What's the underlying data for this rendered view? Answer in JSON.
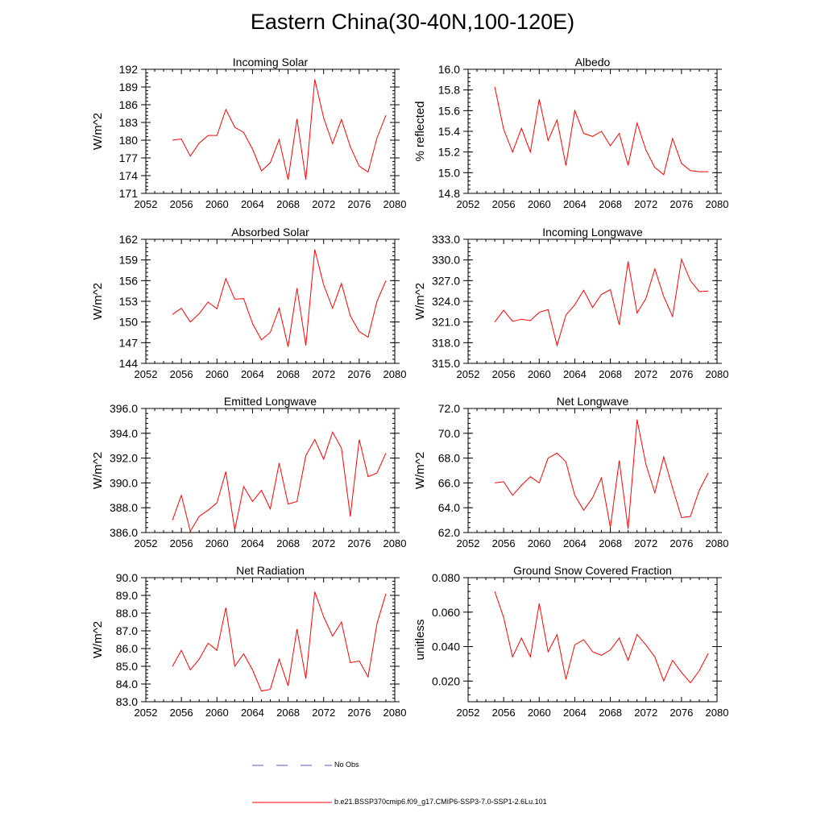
{
  "title": "Eastern China(30-40N,100-120E)",
  "colors": {
    "model": "#ff0000",
    "obs": "#5a5ac8",
    "axis": "#000000"
  },
  "legend": {
    "obs_label": "No Obs",
    "model_label": "b.e21.BSSP370cmip6.f09_g17.CMIP6-SSP3-7.0-SSP1-2.6Lu.101"
  },
  "chart_data": [
    {
      "type": "line",
      "title": "Incoming Solar",
      "ylabel": "W/m^2",
      "xlim": [
        2052,
        2080
      ],
      "ylim": [
        171,
        192
      ],
      "xticks": [
        2052,
        2056,
        2060,
        2064,
        2068,
        2072,
        2076,
        2080
      ],
      "yticks": [
        "171",
        "174",
        "177",
        "180",
        "183",
        "186",
        "189",
        "192"
      ],
      "x": [
        2055,
        2056,
        2057,
        2058,
        2059,
        2060,
        2061,
        2062,
        2063,
        2064,
        2065,
        2066,
        2067,
        2068,
        2069,
        2070,
        2071,
        2072,
        2073,
        2074,
        2075,
        2076,
        2077,
        2078,
        2079
      ],
      "series": [
        {
          "values": [
            180.0,
            180.2,
            177.3,
            179.5,
            180.8,
            180.8,
            185.2,
            182.2,
            181.3,
            178.5,
            174.8,
            176.2,
            180.1,
            173.3,
            183.6,
            173.3,
            190.3,
            183.8,
            179.4,
            183.5,
            178.9,
            175.6,
            174.6,
            180.4,
            184.2
          ]
        }
      ]
    },
    {
      "type": "line",
      "title": "Albedo",
      "ylabel": "% reflected",
      "xlim": [
        2052,
        2080
      ],
      "ylim": [
        14.8,
        16.0
      ],
      "xticks": [
        2052,
        2056,
        2060,
        2064,
        2068,
        2072,
        2076,
        2080
      ],
      "yticks": [
        "14.8",
        "15.0",
        "15.2",
        "15.4",
        "15.6",
        "15.8",
        "16.0"
      ],
      "x": [
        2055,
        2056,
        2057,
        2058,
        2059,
        2060,
        2061,
        2062,
        2063,
        2064,
        2065,
        2066,
        2067,
        2068,
        2069,
        2070,
        2071,
        2072,
        2073,
        2074,
        2075,
        2076,
        2077,
        2078,
        2079
      ],
      "series": [
        {
          "values": [
            15.83,
            15.42,
            15.2,
            15.43,
            15.2,
            15.71,
            15.31,
            15.51,
            15.07,
            15.6,
            15.38,
            15.35,
            15.4,
            15.26,
            15.38,
            15.07,
            15.48,
            15.22,
            15.05,
            14.98,
            15.33,
            15.09,
            15.02,
            15.01,
            15.01
          ]
        }
      ]
    },
    {
      "type": "line",
      "title": "Absorbed Solar",
      "ylabel": "W/m^2",
      "xlim": [
        2052,
        2080
      ],
      "ylim": [
        144,
        162
      ],
      "xticks": [
        2052,
        2056,
        2060,
        2064,
        2068,
        2072,
        2076,
        2080
      ],
      "yticks": [
        "144",
        "147",
        "150",
        "153",
        "156",
        "159",
        "162"
      ],
      "x": [
        2055,
        2056,
        2057,
        2058,
        2059,
        2060,
        2061,
        2062,
        2063,
        2064,
        2065,
        2066,
        2067,
        2068,
        2069,
        2070,
        2071,
        2072,
        2073,
        2074,
        2075,
        2076,
        2077,
        2078,
        2079
      ],
      "series": [
        {
          "values": [
            151.1,
            152.0,
            150.0,
            151.2,
            152.9,
            151.9,
            156.3,
            153.3,
            153.4,
            149.8,
            147.4,
            148.5,
            152.0,
            146.4,
            154.9,
            146.6,
            160.5,
            155.4,
            152.0,
            155.6,
            150.9,
            148.6,
            147.8,
            153.0,
            156.0
          ]
        }
      ]
    },
    {
      "type": "line",
      "title": "Incoming Longwave",
      "ylabel": "W/m^2",
      "xlim": [
        2052,
        2080
      ],
      "ylim": [
        315.0,
        333.0
      ],
      "xticks": [
        2052,
        2056,
        2060,
        2064,
        2068,
        2072,
        2076,
        2080
      ],
      "yticks": [
        "315.0",
        "318.0",
        "321.0",
        "324.0",
        "327.0",
        "330.0",
        "333.0"
      ],
      "x": [
        2055,
        2056,
        2057,
        2058,
        2059,
        2060,
        2061,
        2062,
        2063,
        2064,
        2065,
        2066,
        2067,
        2068,
        2069,
        2070,
        2071,
        2072,
        2073,
        2074,
        2075,
        2076,
        2077,
        2078,
        2079
      ],
      "series": [
        {
          "values": [
            321.0,
            322.7,
            321.1,
            321.4,
            321.2,
            322.4,
            322.8,
            317.6,
            322.0,
            323.5,
            325.6,
            323.1,
            325.0,
            325.7,
            320.6,
            329.8,
            322.3,
            324.4,
            328.7,
            324.7,
            321.8,
            330.1,
            327.0,
            325.4,
            325.5
          ]
        }
      ]
    },
    {
      "type": "line",
      "title": "Emitted Longwave",
      "ylabel": "W/m^2",
      "xlim": [
        2052,
        2080
      ],
      "ylim": [
        386.0,
        396.0
      ],
      "xticks": [
        2052,
        2056,
        2060,
        2064,
        2068,
        2072,
        2076,
        2080
      ],
      "yticks": [
        "386.0",
        "388.0",
        "390.0",
        "392.0",
        "394.0",
        "396.0"
      ],
      "x": [
        2055,
        2056,
        2057,
        2058,
        2059,
        2060,
        2061,
        2062,
        2063,
        2064,
        2065,
        2066,
        2067,
        2068,
        2069,
        2070,
        2071,
        2072,
        2073,
        2074,
        2075,
        2076,
        2077,
        2078,
        2079
      ],
      "series": [
        {
          "values": [
            387.0,
            389.0,
            386.1,
            387.3,
            387.8,
            388.4,
            390.9,
            386.2,
            389.7,
            388.5,
            389.4,
            387.9,
            391.6,
            388.3,
            388.5,
            392.2,
            393.5,
            391.9,
            394.1,
            392.8,
            387.3,
            393.5,
            390.5,
            390.8,
            392.4
          ]
        }
      ]
    },
    {
      "type": "line",
      "title": "Net Longwave",
      "ylabel": "W/m^2",
      "xlim": [
        2052,
        2080
      ],
      "ylim": [
        62.0,
        72.0
      ],
      "xticks": [
        2052,
        2056,
        2060,
        2064,
        2068,
        2072,
        2076,
        2080
      ],
      "yticks": [
        "62.0",
        "64.0",
        "66.0",
        "68.0",
        "70.0",
        "72.0"
      ],
      "x": [
        2055,
        2056,
        2057,
        2058,
        2059,
        2060,
        2061,
        2062,
        2063,
        2064,
        2065,
        2066,
        2067,
        2068,
        2069,
        2070,
        2071,
        2072,
        2073,
        2074,
        2075,
        2076,
        2077,
        2078,
        2079
      ],
      "series": [
        {
          "values": [
            66.0,
            66.1,
            65.0,
            65.8,
            66.5,
            66.0,
            68.0,
            68.4,
            67.7,
            65.0,
            63.8,
            64.8,
            66.4,
            62.4,
            67.8,
            62.3,
            71.1,
            67.5,
            65.2,
            68.1,
            65.6,
            63.2,
            63.3,
            65.4,
            66.8
          ]
        }
      ]
    },
    {
      "type": "line",
      "title": "Net Radiation",
      "ylabel": "W/m^2",
      "xlim": [
        2052,
        2080
      ],
      "ylim": [
        83.0,
        90.0
      ],
      "xticks": [
        2052,
        2056,
        2060,
        2064,
        2068,
        2072,
        2076,
        2080
      ],
      "yticks": [
        "83.0",
        "84.0",
        "85.0",
        "86.0",
        "87.0",
        "88.0",
        "89.0",
        "90.0"
      ],
      "x": [
        2055,
        2056,
        2057,
        2058,
        2059,
        2060,
        2061,
        2062,
        2063,
        2064,
        2065,
        2066,
        2067,
        2068,
        2069,
        2070,
        2071,
        2072,
        2073,
        2074,
        2075,
        2076,
        2077,
        2078,
        2079
      ],
      "series": [
        {
          "values": [
            85.0,
            85.9,
            84.8,
            85.4,
            86.3,
            85.9,
            88.3,
            85.0,
            85.7,
            84.8,
            83.6,
            83.7,
            85.4,
            83.9,
            87.1,
            84.3,
            89.2,
            87.8,
            86.7,
            87.5,
            85.2,
            85.3,
            84.4,
            87.4,
            89.1
          ]
        }
      ]
    },
    {
      "type": "line",
      "title": "Ground Snow Covered Fraction",
      "ylabel": "unitless",
      "xlim": [
        2052,
        2080
      ],
      "ylim": [
        0.008,
        0.08
      ],
      "xticks": [
        2052,
        2056,
        2060,
        2064,
        2068,
        2072,
        2076,
        2080
      ],
      "yticks": [
        "0.020",
        "0.040",
        "0.060",
        "0.080"
      ],
      "ytick_values": [
        0.02,
        0.04,
        0.06,
        0.08
      ],
      "x": [
        2055,
        2056,
        2057,
        2058,
        2059,
        2060,
        2061,
        2062,
        2063,
        2064,
        2065,
        2066,
        2067,
        2068,
        2069,
        2070,
        2071,
        2072,
        2073,
        2074,
        2075,
        2076,
        2077,
        2078,
        2079
      ],
      "series": [
        {
          "values": [
            0.072,
            0.057,
            0.034,
            0.045,
            0.034,
            0.065,
            0.037,
            0.047,
            0.021,
            0.041,
            0.044,
            0.037,
            0.035,
            0.038,
            0.045,
            0.032,
            0.047,
            0.041,
            0.034,
            0.02,
            0.032,
            0.025,
            0.019,
            0.026,
            0.036
          ]
        }
      ]
    }
  ]
}
